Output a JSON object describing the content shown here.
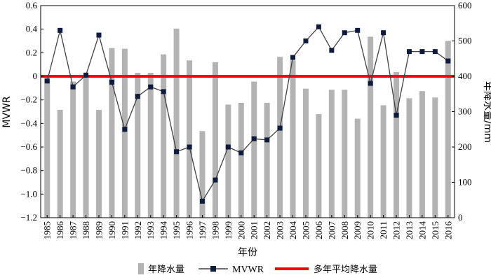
{
  "chart_data": {
    "type": "bar+line",
    "categories": [
      "1985",
      "1986",
      "1987",
      "1988",
      "1989",
      "1990",
      "1991",
      "1992",
      "1993",
      "1994",
      "1995",
      "1996",
      "1997",
      "1998",
      "1999",
      "2000",
      "2001",
      "2002",
      "2003",
      "2004",
      "2005",
      "2006",
      "2007",
      "2008",
      "2009",
      "2010",
      "2011",
      "2012",
      "2013",
      "2014",
      "2015",
      "2016"
    ],
    "xlabel": "年份",
    "ylabel_left": "MVWR",
    "ylabel_right": "年降水量/mm",
    "ylim_left": [
      -1.2,
      0.6
    ],
    "ylim_right": [
      0,
      600
    ],
    "yticks_left": [
      "0.6",
      "0.4",
      "0.2",
      "0",
      "−0.2",
      "−0.4",
      "−0.6",
      "−0.8",
      "−1.0",
      "−1.2"
    ],
    "yticks_right": [
      "600",
      "500",
      "400",
      "300",
      "200",
      "100",
      "0"
    ],
    "series": [
      {
        "name": "年降水量",
        "kind": "bar",
        "axis": "right",
        "color": "#b3b3b3",
        "values": [
          395,
          305,
          385,
          400,
          305,
          480,
          478,
          410,
          410,
          462,
          535,
          445,
          245,
          440,
          320,
          325,
          385,
          325,
          455,
          445,
          365,
          293,
          362,
          362,
          280,
          512,
          318,
          412,
          338,
          358,
          340,
          500
        ]
      },
      {
        "name": "MVWR",
        "kind": "line",
        "axis": "left",
        "color": "#404040",
        "marker_color": "#0d1b3e",
        "values": [
          -0.04,
          0.39,
          -0.09,
          0.01,
          0.35,
          -0.05,
          -0.45,
          -0.17,
          -0.09,
          -0.13,
          -0.64,
          -0.6,
          -1.06,
          -0.88,
          -0.6,
          -0.65,
          -0.53,
          -0.54,
          -0.44,
          0.16,
          0.3,
          0.42,
          0.22,
          0.37,
          0.39,
          -0.06,
          0.37,
          -0.33,
          0.21,
          0.21,
          0.21,
          0.13
        ]
      },
      {
        "name": "多年平均降水量",
        "kind": "hline",
        "axis": "right",
        "color": "#ff0000",
        "value": 400
      }
    ],
    "legend_position": "bottom",
    "grid": false
  }
}
